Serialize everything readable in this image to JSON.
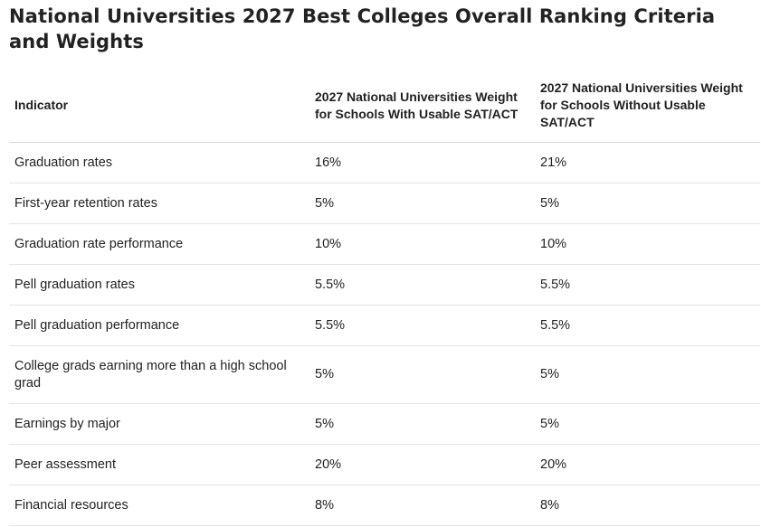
{
  "title": "National Universities 2027 Best Colleges Overall Ranking Criteria and Weights",
  "table": {
    "headers": [
      "Indicator",
      "2027 National Universities Weight for Schools With Usable SAT/ACT",
      "2027 National Universities Weight for Schools Without Usable SAT/ACT"
    ],
    "rows": [
      [
        "Graduation rates",
        "16%",
        "21%"
      ],
      [
        "First-year retention rates",
        "5%",
        "5%"
      ],
      [
        "Graduation rate performance",
        "10%",
        "10%"
      ],
      [
        "Pell graduation rates",
        "5.5%",
        "5.5%"
      ],
      [
        "Pell graduation performance",
        "5.5%",
        "5.5%"
      ],
      [
        "College grads earning more than a high school grad",
        "5%",
        "5%"
      ],
      [
        "Earnings by major",
        "5%",
        "5%"
      ],
      [
        "Peer assessment",
        "20%",
        "20%"
      ],
      [
        "Financial resources",
        "8%",
        "8%"
      ]
    ]
  }
}
